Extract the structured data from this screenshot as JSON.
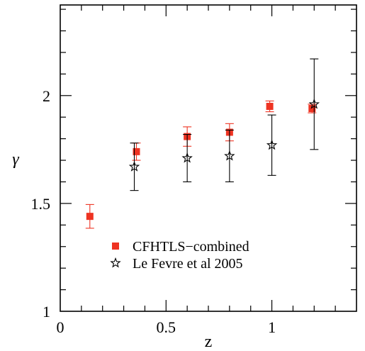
{
  "chart_data": {
    "type": "scatter",
    "xlabel": "z",
    "ylabel": "γ",
    "xlim": [
      0,
      1.4
    ],
    "ylim": [
      1,
      2.42
    ],
    "x_ticks": [
      0,
      0.5,
      1
    ],
    "x_tick_labels": [
      "0",
      "0.5",
      "1"
    ],
    "y_ticks": [
      1,
      1.5,
      2
    ],
    "y_tick_labels": [
      "1",
      "1.5",
      "2"
    ],
    "grid": false,
    "legend_position": "lower-center",
    "series": [
      {
        "name": "CFHTLS−combined",
        "marker": "square",
        "color": "#ee3322",
        "x": [
          0.14,
          0.36,
          0.6,
          0.8,
          0.99,
          1.19
        ],
        "y": [
          1.44,
          1.74,
          1.81,
          1.83,
          1.95,
          1.94
        ],
        "yerr_low": [
          0.055,
          0.04,
          0.045,
          0.04,
          0.025,
          0.02
        ],
        "yerr_high": [
          0.055,
          0.04,
          0.045,
          0.04,
          0.025,
          0.02
        ]
      },
      {
        "name": "Le Fevre et al 2005",
        "marker": "open-star",
        "color": "#000000",
        "x": [
          0.35,
          0.6,
          0.8,
          1.0,
          1.2
        ],
        "y": [
          1.67,
          1.71,
          1.72,
          1.77,
          1.96
        ],
        "yerr_low": [
          0.11,
          0.11,
          0.12,
          0.14,
          0.21
        ],
        "yerr_high": [
          0.11,
          0.11,
          0.12,
          0.14,
          0.21
        ]
      }
    ]
  }
}
